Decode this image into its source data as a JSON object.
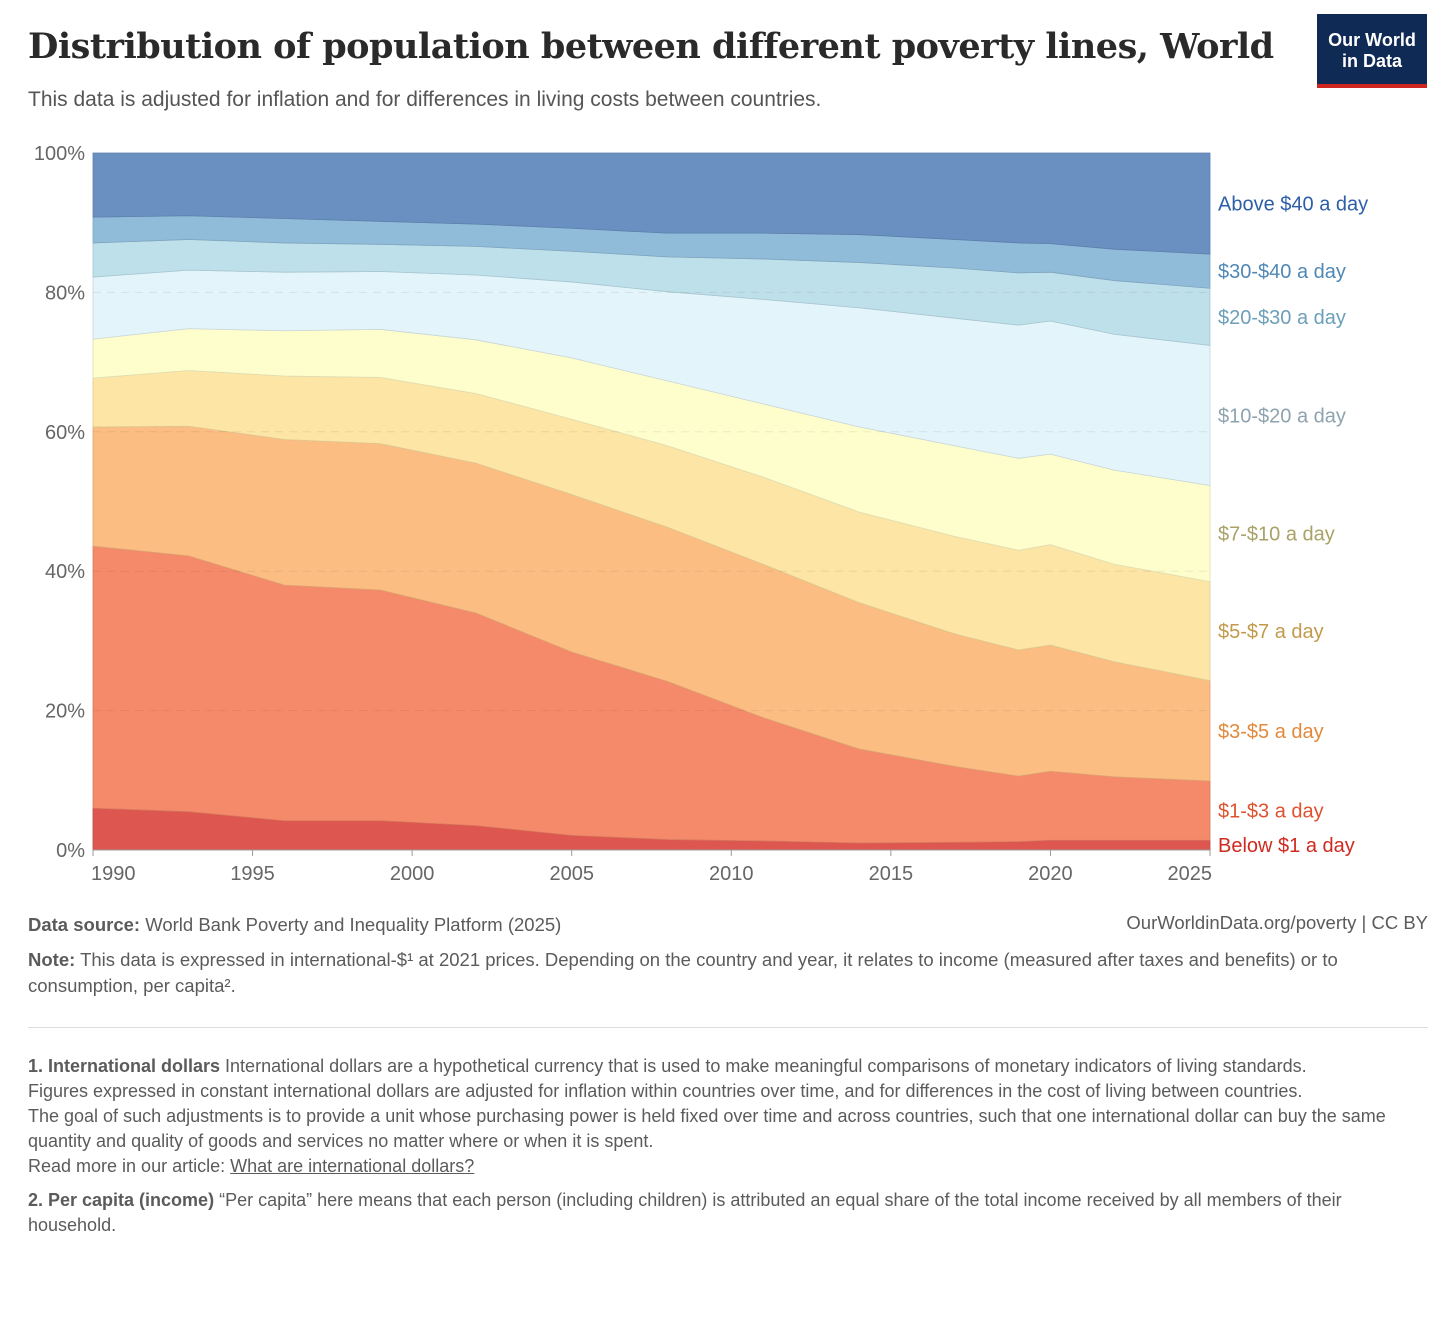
{
  "header": {
    "title": "Distribution of population between different poverty lines, World",
    "subtitle": "This data is adjusted for inflation and for differences in living costs between countries.",
    "logo_line1": "Our World",
    "logo_line2": "in Data"
  },
  "chart_data": {
    "type": "area",
    "stacked": true,
    "title": "Distribution of population between different poverty lines, World",
    "xlabel": "",
    "ylabel": "",
    "x": [
      1990,
      1993,
      1996,
      1999,
      2002,
      2005,
      2008,
      2011,
      2014,
      2017,
      2019,
      2020,
      2022,
      2025
    ],
    "xlim": [
      1990,
      2025
    ],
    "ylim": [
      0,
      100
    ],
    "x_ticks": [
      "1990",
      "1995",
      "2000",
      "2005",
      "2010",
      "2015",
      "2020",
      "2025"
    ],
    "x_tick_values": [
      1990,
      1995,
      2000,
      2005,
      2010,
      2015,
      2020,
      2025
    ],
    "y_ticks": [
      "0%",
      "20%",
      "40%",
      "60%",
      "80%",
      "100%"
    ],
    "y_tick_values": [
      0,
      20,
      40,
      60,
      80,
      100
    ],
    "grid": true,
    "legend_placement": "right (inline labels)",
    "series": [
      {
        "name": "Below $1 a day",
        "color": "#de5650",
        "label_color": "#d02a20",
        "values": [
          6.0,
          5.5,
          4.2,
          4.2,
          3.5,
          2.1,
          1.5,
          1.3,
          1.0,
          1.1,
          1.2,
          1.4,
          1.4,
          1.4
        ]
      },
      {
        "name": "$1-$3 a day",
        "color": "#f58a6b",
        "label_color": "#e0522e",
        "values": [
          37.6,
          36.7,
          33.8,
          33.1,
          30.5,
          26.3,
          22.7,
          17.7,
          13.5,
          10.9,
          9.4,
          9.9,
          9.1,
          8.5
        ]
      },
      {
        "name": "$3-$5 a day",
        "color": "#fbbd82",
        "label_color": "#e3893c",
        "values": [
          17.1,
          18.6,
          20.9,
          21.0,
          21.5,
          22.6,
          22.1,
          22.0,
          21.0,
          19.0,
          18.1,
          18.1,
          16.5,
          14.4
        ]
      },
      {
        "name": "$5-$7 a day",
        "color": "#fde5a6",
        "label_color": "#c39a4c",
        "values": [
          7.0,
          8.0,
          9.1,
          9.5,
          10.0,
          10.8,
          11.7,
          12.5,
          13.0,
          14.0,
          14.3,
          14.4,
          14.0,
          14.2
        ]
      },
      {
        "name": "$7-$10 a day",
        "color": "#fefdcc",
        "label_color": "#a9a266",
        "values": [
          5.6,
          6.0,
          6.5,
          6.9,
          7.7,
          8.8,
          9.3,
          10.5,
          12.2,
          13.0,
          13.2,
          13.0,
          13.5,
          13.8
        ]
      },
      {
        "name": "$10-$20 a day",
        "color": "#e3f4fa",
        "label_color": "#8ea3af",
        "values": [
          8.9,
          8.4,
          8.4,
          8.3,
          9.3,
          10.9,
          12.8,
          15.0,
          17.1,
          18.3,
          19.1,
          19.1,
          19.5,
          20.1
        ]
      },
      {
        "name": "$20-$30 a day",
        "color": "#bde0eb",
        "label_color": "#6c9fb8",
        "values": [
          4.9,
          4.4,
          4.2,
          3.9,
          4.1,
          4.4,
          5.0,
          5.8,
          6.5,
          7.2,
          7.5,
          7.0,
          7.7,
          8.2
        ]
      },
      {
        "name": "$30-$40 a day",
        "color": "#90bcd9",
        "label_color": "#4f88b6",
        "values": [
          3.7,
          3.4,
          3.5,
          3.3,
          3.2,
          3.3,
          3.4,
          3.7,
          4.0,
          4.1,
          4.3,
          4.1,
          4.5,
          4.9
        ]
      },
      {
        "name": "Above $40 a day",
        "color": "#6a90c2",
        "label_color": "#2d5ea8",
        "values": [
          9.2,
          9.0,
          9.4,
          9.8,
          10.2,
          10.8,
          11.5,
          11.5,
          11.7,
          12.4,
          12.9,
          13.0,
          13.8,
          14.5
        ]
      }
    ]
  },
  "footer": {
    "source_label": "Data source:",
    "source_text": " World Bank Poverty and Inequality Platform (2025)",
    "credit": "OurWorldinData.org/poverty | CC BY",
    "note_label": "Note:",
    "note_text": " This data is expressed in international-$¹ at 2021 prices. Depending on the country and year, it relates to income (measured after taxes and benefits) or to consumption, per capita².",
    "fn1_title": "1. International dollars",
    "fn1_text": " International dollars are a hypothetical currency that is used to make meaningful comparisons of monetary indicators of living standards.",
    "fn1_p2": "Figures expressed in constant international dollars are adjusted for inflation within countries over time, and for differences in the cost of living between countries.",
    "fn1_p3": "The goal of such adjustments is to provide a unit whose purchasing power is held fixed over time and across countries, such that one international dollar can buy the same quantity and quality of goods and services no matter where or when it is spent.",
    "fn1_read": "Read more in our article: ",
    "fn1_link": "What are international dollars?",
    "fn2_title": "2. Per capita (income)",
    "fn2_text": " “Per capita” here means that each person (including children) is attributed an equal share of the total income received by all members of their household."
  }
}
